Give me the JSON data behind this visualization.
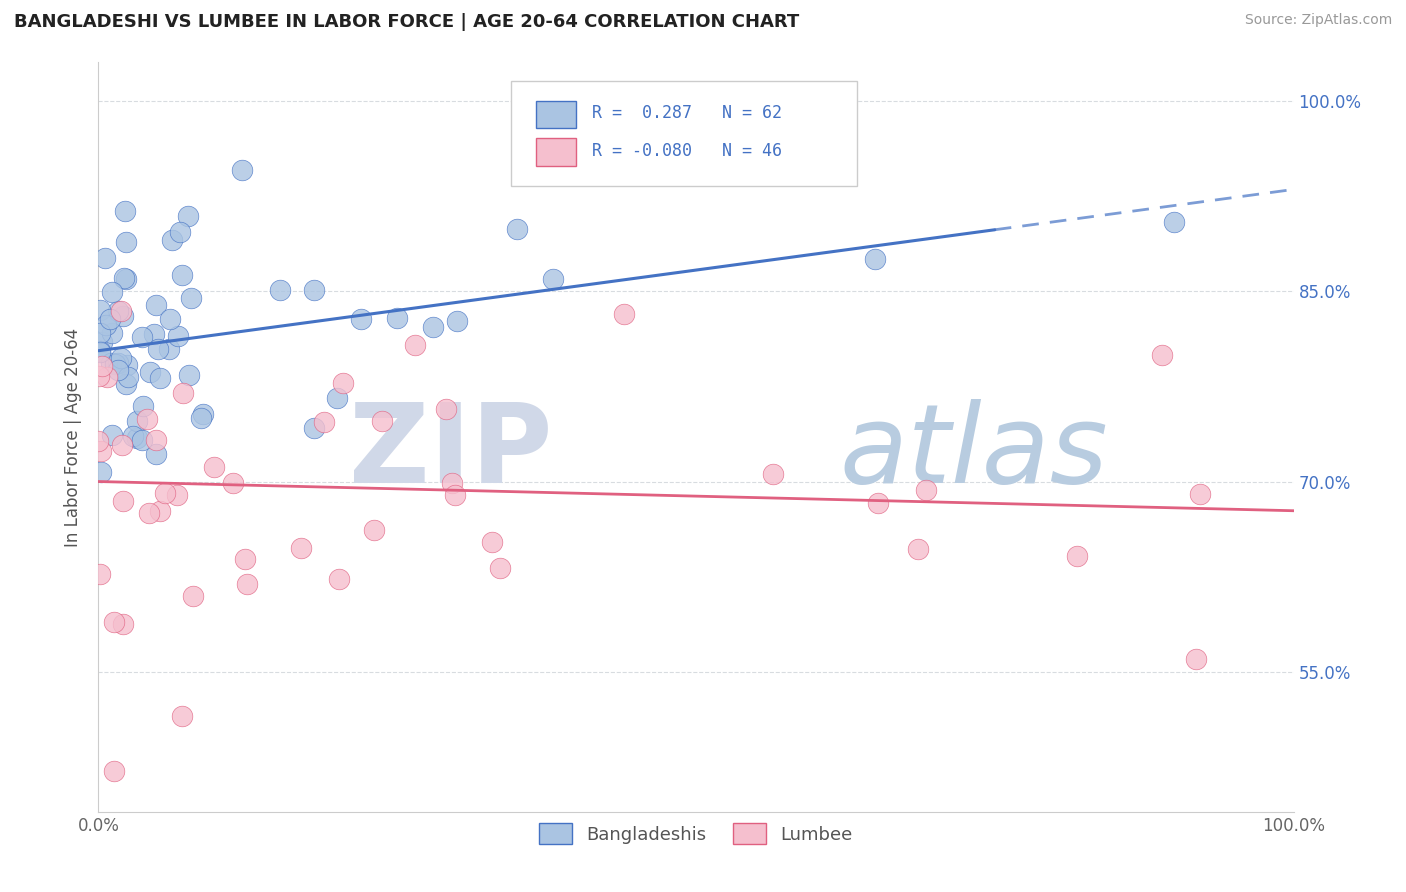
{
  "title": "BANGLADESHI VS LUMBEE IN LABOR FORCE | AGE 20-64 CORRELATION CHART",
  "source": "Source: ZipAtlas.com",
  "ylabel": "In Labor Force | Age 20-64",
  "xlim": [
    0.0,
    1.0
  ],
  "ylim": [
    0.44,
    1.03
  ],
  "yticks": [
    0.55,
    0.7,
    0.85,
    1.0
  ],
  "ytick_labels": [
    "55.0%",
    "70.0%",
    "85.0%",
    "100.0%"
  ],
  "xtick_labels": [
    "0.0%",
    "100.0%"
  ],
  "bg_color": "#ffffff",
  "plot_bg_color": "#ffffff",
  "grid_color": "#d8dce0",
  "bangladeshi_color": "#aac4e2",
  "lumbee_color": "#f5bfce",
  "bangladeshi_line_color": "#4472c4",
  "lumbee_line_color": "#e06080",
  "legend_r_bangladeshi": "0.287",
  "legend_n_bangladeshi": "62",
  "legend_r_lumbee": "-0.080",
  "legend_n_lumbee": "46",
  "legend_text_color": "#4472c4",
  "watermark_zip_color": "#d0d8e8",
  "watermark_atlas_color": "#b8cce0"
}
